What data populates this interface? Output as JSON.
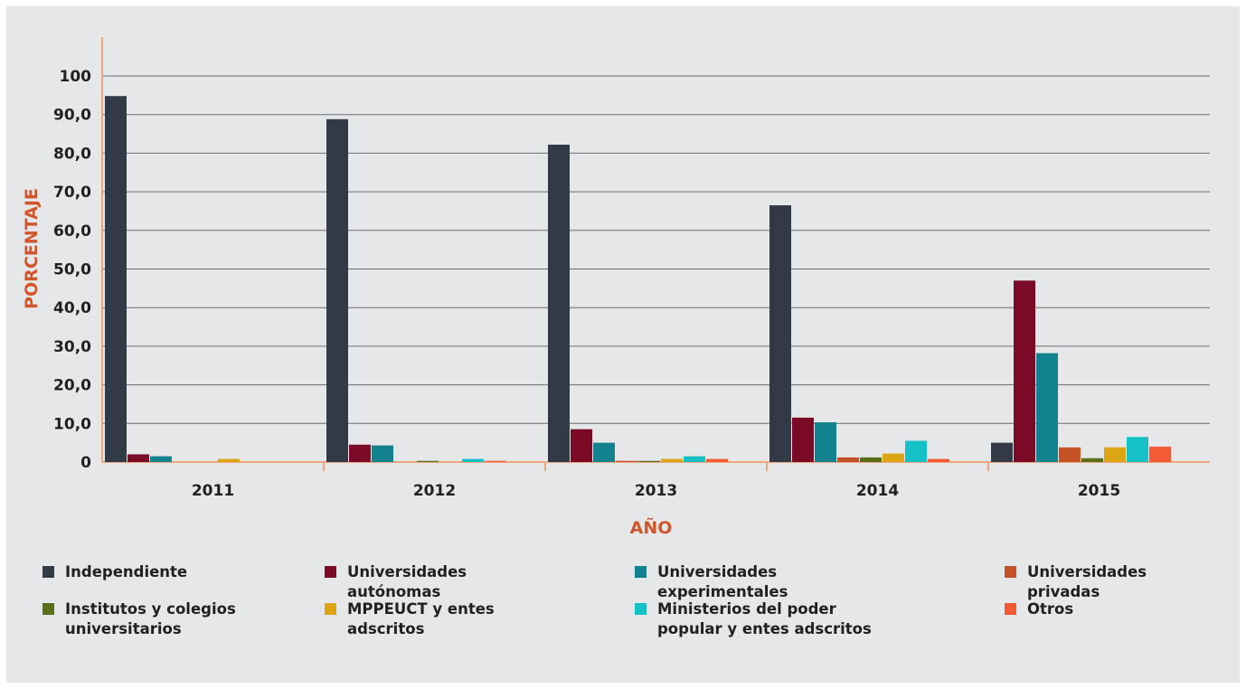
{
  "chart_data": {
    "type": "bar",
    "categories": [
      "2011",
      "2012",
      "2013",
      "2014",
      "2015"
    ],
    "xlabel": "AÑO",
    "ylabel": "PORCENTAJE",
    "ylim": [
      0,
      100
    ],
    "yticks": [
      "0",
      "10,0",
      "20,0",
      "30,0",
      "40,0",
      "50,0",
      "60,0",
      "70,0",
      "80,0",
      "90,0",
      "100"
    ],
    "grid": true,
    "legend_position": "bottom",
    "series": [
      {
        "name": "Independiente",
        "color": "#323b45",
        "values": [
          94.8,
          88.8,
          82.2,
          66.5,
          5.0
        ]
      },
      {
        "name": "Universidades autónomas",
        "color": "#7b0a27",
        "values": [
          2.0,
          4.5,
          8.5,
          11.5,
          47.0
        ]
      },
      {
        "name": "Universidades experimentales",
        "color": "#13828f",
        "values": [
          1.5,
          4.3,
          5.0,
          10.3,
          28.2
        ]
      },
      {
        "name": "Universidades privadas",
        "color": "#c55126",
        "values": [
          0.0,
          0.0,
          0.3,
          1.2,
          3.8
        ]
      },
      {
        "name": "Institutos y colegios universitarios",
        "color": "#5b6f17",
        "values": [
          0.0,
          0.3,
          0.3,
          1.2,
          1.0
        ]
      },
      {
        "name": "MPPEUCT y entes adscritos",
        "color": "#dda514",
        "values": [
          0.8,
          0.0,
          0.8,
          2.2,
          3.8
        ]
      },
      {
        "name": "Ministerios del poder popular y entes adscritos",
        "color": "#15c0c6",
        "values": [
          0.0,
          0.8,
          1.5,
          5.5,
          6.5
        ]
      },
      {
        "name": "Otros",
        "color": "#f35b36",
        "values": [
          0.0,
          0.3,
          0.8,
          0.8,
          4.0
        ]
      }
    ]
  }
}
